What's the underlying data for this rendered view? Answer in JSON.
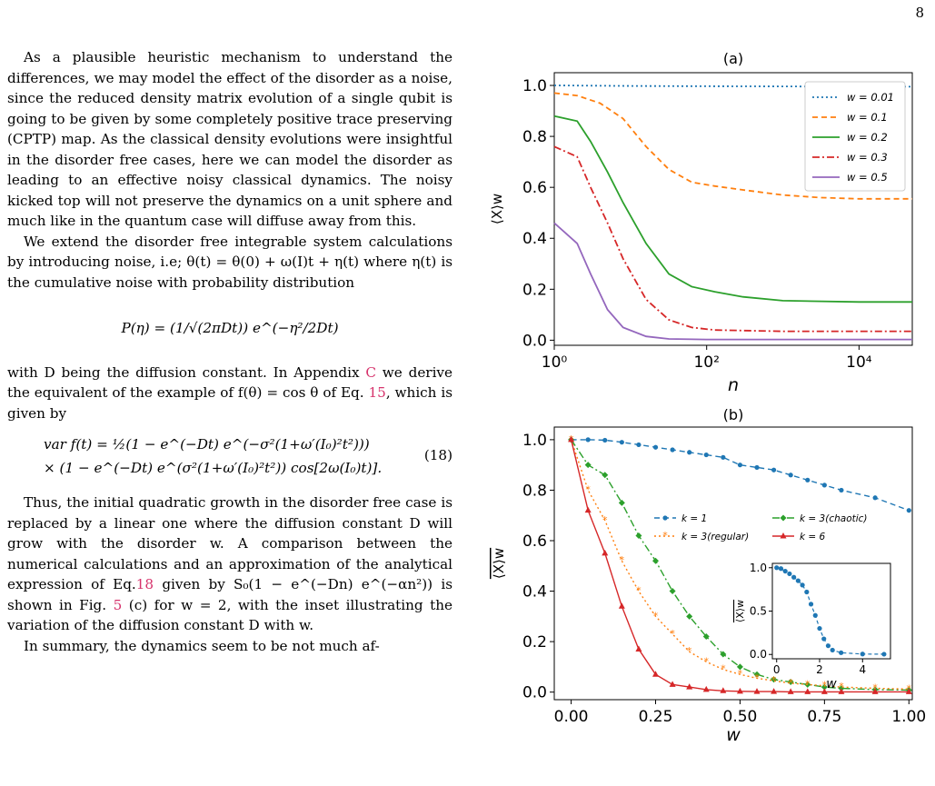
{
  "page_number": "8",
  "text": {
    "p1": "As a plausible heuristic mechanism to understand the differences, we may model the effect of the disorder as a noise, since the reduced density matrix evolution of a single qubit is going to be given by some completely positive trace preserving (CPTP) map. As the classical density evolutions were insightful in the disorder free cases, here we can model the disorder as leading to an effective noisy classical dynamics. The noisy kicked top will not preserve the dynamics on a unit sphere and much like in the quantum case will diffuse away from this.",
    "p2": "We extend the disorder free integrable system calculations by introducing noise, i.e; θ(t) = θ(0) + ω(I)t + η(t) where η(t) is the cumulative noise with probability distribution",
    "eq1": "P(η) = (1/√(2πDt)) e^(−η²/2Dt)",
    "p3a": "with D being the diffusion constant. In Appendix ",
    "p3_appendix": "C",
    "p3b": " we derive the equivalent of the example of f(θ) = cos θ of Eq. ",
    "p3_eq": "15",
    "p3c": ", which is given by",
    "eq18_line1": "var f(t) = ½(1 − e^(−Dt) e^(−σ²(1+ω′(I₀)²t²)))",
    "eq18_line2": "× (1 − e^(−Dt) e^(σ²(1+ω′(I₀)²t²)) cos[2ω(I₀)t)].",
    "eq18_num": "(18)",
    "p4a": "Thus, the initial quadratic growth in the disorder free case is replaced by a linear one where the diffusion constant D will grow with the disorder w. A comparison between the numerical calculations and an approximation of the analytical expression of Eq.",
    "p4_eq": "18",
    "p4b": " given by S₀(1 − e^(−Dn) e^(−αn²)) is shown in Fig. ",
    "p4_fig": "5",
    "p4c": " (c) for w = 2, with the inset illustrating the variation of the diffusion constant D with w.",
    "p5": "In summary, the dynamics seem to be not much af-"
  },
  "colors": {
    "blue": "#1f77b4",
    "orange": "#ff7f0e",
    "green": "#2ca02c",
    "red": "#d62728",
    "purple": "#9467bd",
    "link": "#d6336c"
  },
  "chart_data": [
    {
      "type": "line",
      "panel_title": "(a)",
      "xlabel": "n",
      "ylabel": "⟨X⟩w",
      "xscale": "log",
      "xlim": [
        1,
        50000
      ],
      "ylim": [
        -0.02,
        1.05
      ],
      "xticks": [
        "10⁰",
        "10²",
        "10⁴"
      ],
      "yticks": [
        "0.0",
        "0.2",
        "0.4",
        "0.6",
        "0.8",
        "1.0"
      ],
      "legend_position": "upper right",
      "series": [
        {
          "name": "w = 0.01",
          "style": "dotted",
          "color": "#1f77b4",
          "points": [
            [
              1,
              1.0
            ],
            [
              10,
              0.998
            ],
            [
              100,
              0.997
            ],
            [
              1000,
              0.996
            ],
            [
              10000,
              0.995
            ],
            [
              50000,
              0.995
            ]
          ]
        },
        {
          "name": "w = 0.1",
          "style": "dashed",
          "color": "#ff7f0e",
          "points": [
            [
              1,
              0.97
            ],
            [
              2,
              0.96
            ],
            [
              4,
              0.93
            ],
            [
              8,
              0.87
            ],
            [
              16,
              0.76
            ],
            [
              32,
              0.67
            ],
            [
              64,
              0.62
            ],
            [
              128,
              0.605
            ],
            [
              300,
              0.59
            ],
            [
              1000,
              0.57
            ],
            [
              3000,
              0.56
            ],
            [
              10000,
              0.555
            ],
            [
              50000,
              0.555
            ]
          ]
        },
        {
          "name": "w = 0.2",
          "style": "solid",
          "color": "#2ca02c",
          "points": [
            [
              1,
              0.88
            ],
            [
              2,
              0.86
            ],
            [
              3,
              0.78
            ],
            [
              5,
              0.66
            ],
            [
              8,
              0.54
            ],
            [
              16,
              0.38
            ],
            [
              32,
              0.26
            ],
            [
              64,
              0.21
            ],
            [
              128,
              0.19
            ],
            [
              300,
              0.17
            ],
            [
              1000,
              0.155
            ],
            [
              10000,
              0.15
            ],
            [
              50000,
              0.15
            ]
          ]
        },
        {
          "name": "w = 0.3",
          "style": "dashdot",
          "color": "#d62728",
          "points": [
            [
              1,
              0.76
            ],
            [
              2,
              0.72
            ],
            [
              3,
              0.6
            ],
            [
              5,
              0.46
            ],
            [
              8,
              0.32
            ],
            [
              16,
              0.16
            ],
            [
              32,
              0.08
            ],
            [
              64,
              0.05
            ],
            [
              128,
              0.04
            ],
            [
              1000,
              0.035
            ],
            [
              50000,
              0.035
            ]
          ]
        },
        {
          "name": "w = 0.5",
          "style": "solid",
          "color": "#9467bd",
          "points": [
            [
              1,
              0.46
            ],
            [
              2,
              0.38
            ],
            [
              3,
              0.26
            ],
            [
              5,
              0.12
            ],
            [
              8,
              0.05
            ],
            [
              16,
              0.015
            ],
            [
              32,
              0.005
            ],
            [
              100,
              0.003
            ],
            [
              50000,
              0.003
            ]
          ]
        }
      ]
    },
    {
      "type": "line",
      "panel_title": "(b)",
      "xlabel": "w",
      "ylabel": "⟨X⟩w",
      "xlim": [
        -0.05,
        1.01
      ],
      "ylim": [
        -0.03,
        1.05
      ],
      "xticks": [
        "0.00",
        "0.25",
        "0.50",
        "0.75",
        "1.00"
      ],
      "yticks": [
        "0.0",
        "0.2",
        "0.4",
        "0.6",
        "0.8",
        "1.0"
      ],
      "series": [
        {
          "name": "k = 1",
          "color": "#1f77b4",
          "style": "dashed",
          "marker": "circle",
          "x": [
            0,
            0.05,
            0.1,
            0.15,
            0.2,
            0.25,
            0.3,
            0.35,
            0.4,
            0.45,
            0.5,
            0.55,
            0.6,
            0.65,
            0.7,
            0.75,
            0.8,
            0.9,
            1.0
          ],
          "y": [
            1.0,
            1.0,
            0.998,
            0.99,
            0.98,
            0.97,
            0.96,
            0.95,
            0.94,
            0.93,
            0.9,
            0.89,
            0.88,
            0.86,
            0.84,
            0.82,
            0.8,
            0.77,
            0.72
          ]
        },
        {
          "name": "k = 3(chaotic)",
          "color": "#2ca02c",
          "style": "dashdot",
          "marker": "diamond",
          "x": [
            0,
            0.05,
            0.1,
            0.15,
            0.2,
            0.25,
            0.3,
            0.35,
            0.4,
            0.45,
            0.5,
            0.55,
            0.6,
            0.65,
            0.7,
            0.75,
            0.8,
            0.9,
            1.0
          ],
          "y": [
            1.0,
            0.9,
            0.86,
            0.75,
            0.62,
            0.52,
            0.4,
            0.3,
            0.22,
            0.15,
            0.1,
            0.07,
            0.05,
            0.04,
            0.03,
            0.02,
            0.015,
            0.01,
            0.008
          ]
        },
        {
          "name": "k = 3(regular)",
          "color": "#ff7f0e",
          "style": "dotted",
          "marker": "star",
          "x": [
            0,
            0.05,
            0.1,
            0.15,
            0.2,
            0.25,
            0.3,
            0.35,
            0.4,
            0.45,
            0.5,
            0.55,
            0.6,
            0.65,
            0.7,
            0.75,
            0.8,
            0.9,
            1.0
          ],
          "y": [
            1.0,
            0.8,
            0.68,
            0.52,
            0.4,
            0.3,
            0.23,
            0.16,
            0.12,
            0.09,
            0.07,
            0.055,
            0.045,
            0.035,
            0.03,
            0.025,
            0.02,
            0.015,
            0.012
          ]
        },
        {
          "name": "k = 6",
          "color": "#d62728",
          "style": "solid",
          "marker": "triangle",
          "x": [
            0,
            0.05,
            0.1,
            0.15,
            0.2,
            0.25,
            0.3,
            0.35,
            0.4,
            0.45,
            0.5,
            0.55,
            0.6,
            0.65,
            0.7,
            0.75,
            0.8,
            0.9,
            1.0
          ],
          "y": [
            1.0,
            0.72,
            0.55,
            0.34,
            0.17,
            0.07,
            0.03,
            0.02,
            0.01,
            0.005,
            0.003,
            0.002,
            0.002,
            0.001,
            0.001,
            0.001,
            0.001,
            0.001,
            0.001
          ]
        }
      ],
      "inset": {
        "xlabel": "w",
        "ylabel": "⟨X⟩w",
        "xlim": [
          -0.2,
          5.3
        ],
        "ylim": [
          -0.05,
          1.05
        ],
        "xticks": [
          "0",
          "2",
          "4"
        ],
        "yticks": [
          "0.0",
          "0.5",
          "1.0"
        ],
        "series": [
          {
            "color": "#1f77b4",
            "style": "dashed",
            "marker": "circle",
            "x": [
              0,
              0.2,
              0.4,
              0.6,
              0.8,
              1.0,
              1.2,
              1.4,
              1.6,
              1.8,
              2.0,
              2.2,
              2.4,
              2.6,
              3.0,
              4.0,
              5.0
            ],
            "y": [
              1.0,
              0.99,
              0.96,
              0.93,
              0.89,
              0.85,
              0.8,
              0.72,
              0.58,
              0.45,
              0.3,
              0.18,
              0.1,
              0.05,
              0.02,
              0.005,
              0.003
            ]
          }
        ]
      }
    }
  ]
}
